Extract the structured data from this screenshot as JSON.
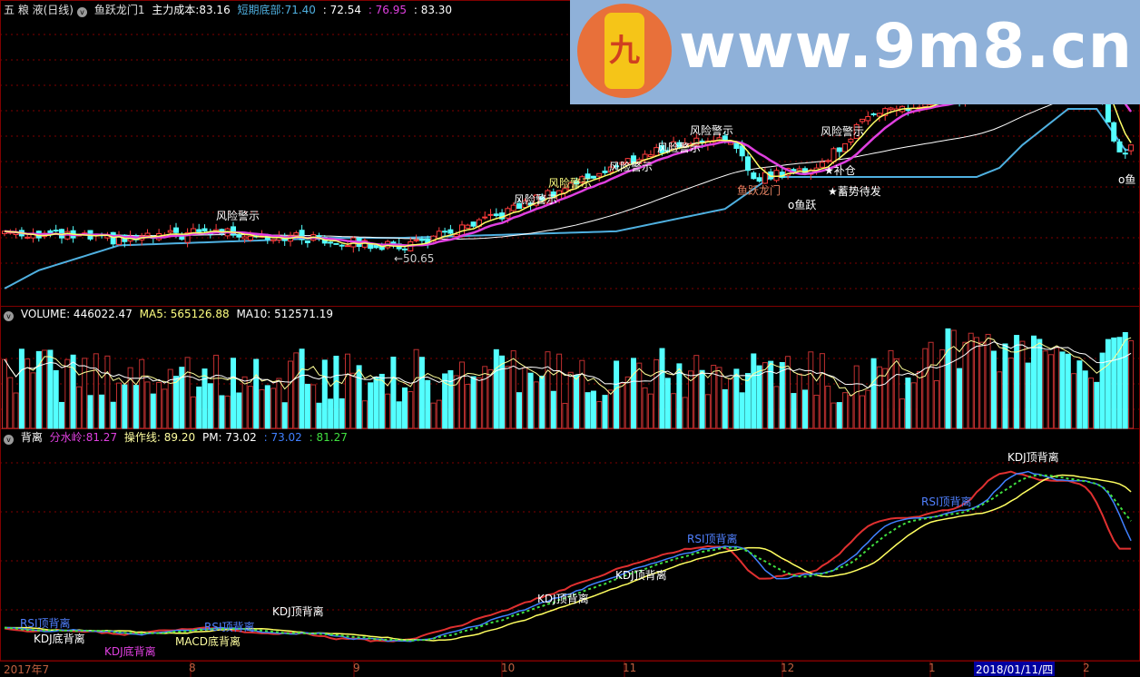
{
  "main_header": {
    "stock": "五 粮 液(日线)",
    "indicator": "鱼跃龙门1",
    "cost_label": "主力成本:",
    "cost_value": "83.16",
    "bottom_label": "短期底部:",
    "bottom_value": "71.40",
    "v2": ": 72.54",
    "v3": ": 76.95",
    "v4": ": 83.30"
  },
  "volume_header": {
    "vol": "VOLUME: 446022.47",
    "ma5": "MA5: 565126.88",
    "ma10": "MA10: 512571.19"
  },
  "ind_header": {
    "name": "背离",
    "fsl_label": "分水岭:",
    "fsl_value": "81.27",
    "czx": "操作线: 89.20",
    "pm": "PM: 73.02",
    "v1": ": 73.02",
    "v2": ": 81.27"
  },
  "watermark": {
    "site": "www.9m8.cn",
    "logo_char": "九"
  },
  "annotations": {
    "risk": "风险警示",
    "low_mark": "←50.65",
    "ylm": "鱼跃龙门",
    "yy": "o鱼跃",
    "bc": "★补仓",
    "xsdf": "★蓄势待发",
    "yu": "o鱼"
  },
  "ind_labels": {
    "rsi_top": "RSI顶背离",
    "kdj_top": "KDJ顶背离",
    "kdj_bottom": "KDJ底背离",
    "macd_bottom": "MACD底背离"
  },
  "axis": {
    "labels": [
      "2017年7",
      "8",
      "9",
      "10",
      "11",
      "12",
      "1",
      "2"
    ],
    "selected_date": "2018/01/11/四"
  },
  "colors": {
    "up": "#ff3c3c",
    "down": "#54ffff",
    "ma_short": "#ffff66",
    "ma_mid": "#e040e0",
    "ma_long": "#ffffff",
    "bottom_line": "#4fb0e0",
    "grid": "#800000"
  },
  "chart_data": {
    "type": "candlestick",
    "price_keypoints": [
      [
        0,
        54.4
      ],
      [
        20,
        52.2
      ],
      [
        37,
        54.4
      ],
      [
        52,
        52.8
      ],
      [
        69,
        50.65
      ],
      [
        82,
        55.5
      ],
      [
        91,
        61
      ],
      [
        104,
        68.6
      ],
      [
        117,
        75.2
      ],
      [
        126,
        77.3
      ],
      [
        131,
        67.5
      ],
      [
        137,
        68.6
      ],
      [
        142,
        69.7
      ],
      [
        148,
        77.3
      ],
      [
        152,
        83.9
      ],
      [
        158,
        83.9
      ],
      [
        167,
        86.1
      ],
      [
        174,
        97
      ],
      [
        190,
        92.7
      ],
      [
        195,
        73
      ],
      [
        197,
        75
      ]
    ],
    "bottom_keypoints": [
      [
        0,
        40.6
      ],
      [
        6,
        45
      ],
      [
        20,
        51
      ],
      [
        57,
        52.8
      ],
      [
        69,
        52.8
      ],
      [
        107,
        54.4
      ],
      [
        126,
        59.8
      ],
      [
        134,
        67.5
      ],
      [
        170,
        67.5
      ],
      [
        174,
        69.7
      ],
      [
        178,
        75.2
      ],
      [
        186,
        83.9
      ],
      [
        191,
        83.9
      ],
      [
        196,
        74
      ]
    ],
    "low_price": 50.65
  }
}
